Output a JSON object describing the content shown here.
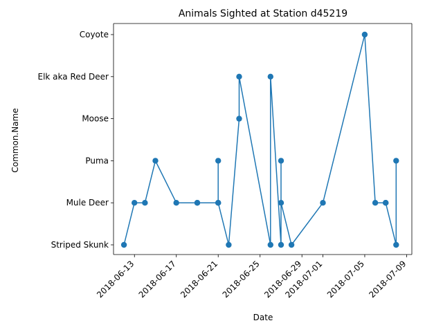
{
  "chart_data": {
    "type": "line",
    "title": "Animals Sighted at Station d45219",
    "xlabel": "Date",
    "ylabel": "Common.Name",
    "categories": [
      "Striped Skunk",
      "Mule Deer",
      "Puma",
      "Moose",
      "Elk aka Red Deer",
      "Coyote"
    ],
    "xlim": [
      "2018-06-11T00:00",
      "2018-07-09T12:00"
    ],
    "x_ticks": [
      "2018-06-13",
      "2018-06-17",
      "2018-06-21",
      "2018-06-25",
      "2018-06-29",
      "2018-07-01",
      "2018-07-05",
      "2018-07-09"
    ],
    "grid": false,
    "series": [
      {
        "color": "#1f77b4",
        "points": [
          {
            "x": "2018-06-12T00:00",
            "y": "Striped Skunk"
          },
          {
            "x": "2018-06-13T00:00",
            "y": "Mule Deer"
          },
          {
            "x": "2018-06-14T00:00",
            "y": "Mule Deer"
          },
          {
            "x": "2018-06-15T00:00",
            "y": "Puma"
          },
          {
            "x": "2018-06-17T00:00",
            "y": "Mule Deer"
          },
          {
            "x": "2018-06-19T00:00",
            "y": "Mule Deer"
          },
          {
            "x": "2018-06-19T00:00",
            "y": "Mule Deer"
          },
          {
            "x": "2018-06-21T00:00",
            "y": "Mule Deer"
          },
          {
            "x": "2018-06-21T00:00",
            "y": "Puma"
          },
          {
            "x": "2018-06-21T00:00",
            "y": "Mule Deer"
          },
          {
            "x": "2018-06-22T00:00",
            "y": "Striped Skunk"
          },
          {
            "x": "2018-06-23T00:00",
            "y": "Moose"
          },
          {
            "x": "2018-06-23T00:00",
            "y": "Elk aka Red Deer"
          },
          {
            "x": "2018-06-26T00:00",
            "y": "Striped Skunk"
          },
          {
            "x": "2018-06-26T00:00",
            "y": "Elk aka Red Deer"
          },
          {
            "x": "2018-06-27T00:00",
            "y": "Striped Skunk"
          },
          {
            "x": "2018-06-27T00:00",
            "y": "Puma"
          },
          {
            "x": "2018-06-27T00:00",
            "y": "Mule Deer"
          },
          {
            "x": "2018-06-28T00:00",
            "y": "Striped Skunk"
          },
          {
            "x": "2018-07-01T00:00",
            "y": "Mule Deer"
          },
          {
            "x": "2018-07-05T00:00",
            "y": "Coyote"
          },
          {
            "x": "2018-07-06T00:00",
            "y": "Mule Deer"
          },
          {
            "x": "2018-07-07T00:00",
            "y": "Mule Deer"
          },
          {
            "x": "2018-07-07T00:00",
            "y": "Mule Deer"
          },
          {
            "x": "2018-07-08T00:00",
            "y": "Striped Skunk"
          },
          {
            "x": "2018-07-08T00:00",
            "y": "Puma"
          }
        ]
      }
    ]
  }
}
